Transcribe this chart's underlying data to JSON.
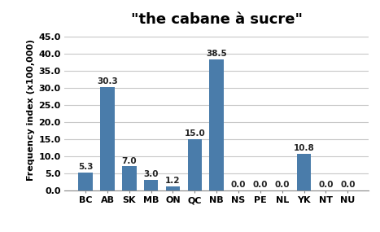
{
  "title": "\"the cabane à sucre\"",
  "categories": [
    "BC",
    "AB",
    "SK",
    "MB",
    "ON",
    "QC",
    "NB",
    "NS",
    "PE",
    "NL",
    "YK",
    "NT",
    "NU"
  ],
  "values": [
    5.3,
    30.3,
    7.0,
    3.0,
    1.2,
    15.0,
    38.5,
    0.0,
    0.0,
    0.0,
    10.8,
    0.0,
    0.0
  ],
  "bar_color": "#4a7caa",
  "ylabel": "Frequency index (x100,000)",
  "ylim": [
    0,
    47
  ],
  "yticks": [
    0.0,
    5.0,
    10.0,
    15.0,
    20.0,
    25.0,
    30.0,
    35.0,
    40.0,
    45.0
  ],
  "title_fontsize": 13,
  "label_fontsize": 7.5,
  "tick_fontsize": 8,
  "ylabel_fontsize": 8,
  "background_color": "#ffffff",
  "grid_color": "#c8c8c8"
}
